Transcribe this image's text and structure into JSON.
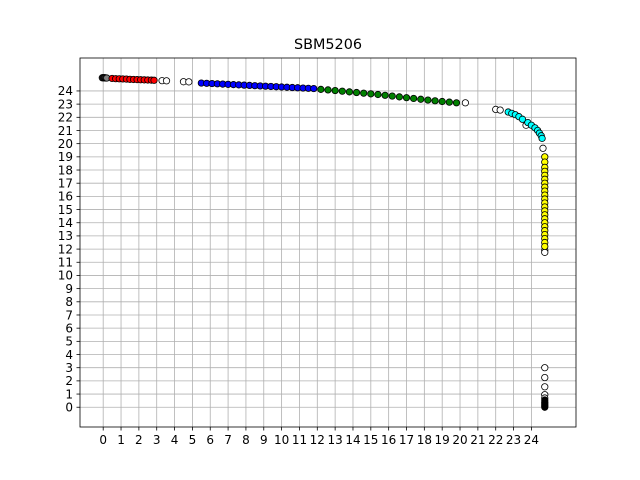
{
  "chart_data": {
    "type": "scatter",
    "title": "SBM5206",
    "xlabel": "",
    "ylabel": "",
    "xlim": [
      -1.3,
      26.5
    ],
    "ylim": [
      -1.5,
      26.5
    ],
    "xticks": [
      0,
      1,
      2,
      3,
      4,
      5,
      6,
      7,
      8,
      9,
      10,
      11,
      12,
      13,
      14,
      15,
      16,
      17,
      18,
      19,
      20,
      21,
      22,
      23,
      24
    ],
    "yticks": [
      0,
      1,
      2,
      3,
      4,
      5,
      6,
      7,
      8,
      9,
      10,
      11,
      12,
      13,
      14,
      15,
      16,
      17,
      18,
      19,
      20,
      21,
      22,
      23,
      24
    ],
    "grid": true,
    "marker": "circle",
    "series": [
      {
        "color": "#808080",
        "points": [
          [
            -0.05,
            25.0
          ],
          [
            0.0,
            25.0
          ],
          [
            0.05,
            25.0
          ],
          [
            0.1,
            25.0
          ],
          [
            0.15,
            24.98
          ],
          [
            0.2,
            24.98
          ]
        ]
      },
      {
        "color": "#ff0000",
        "points": [
          [
            0.5,
            24.95
          ],
          [
            0.7,
            24.93
          ],
          [
            0.9,
            24.92
          ],
          [
            1.1,
            24.91
          ],
          [
            1.3,
            24.9
          ],
          [
            1.5,
            24.88
          ],
          [
            1.7,
            24.87
          ],
          [
            1.9,
            24.86
          ],
          [
            2.1,
            24.85
          ],
          [
            2.3,
            24.84
          ],
          [
            2.5,
            24.83
          ],
          [
            2.7,
            24.82
          ],
          [
            2.85,
            24.81
          ]
        ]
      },
      {
        "color": "#ffffff",
        "points": [
          [
            3.3,
            24.78
          ],
          [
            3.55,
            24.77
          ],
          [
            4.5,
            24.7
          ],
          [
            4.8,
            24.69
          ],
          [
            20.3,
            23.1
          ],
          [
            22.0,
            22.6
          ],
          [
            22.25,
            22.55
          ],
          [
            23.7,
            21.4
          ],
          [
            24.65,
            19.65
          ],
          [
            24.75,
            11.9
          ],
          [
            24.75,
            11.75
          ],
          [
            24.75,
            3.0
          ],
          [
            24.75,
            2.25
          ],
          [
            24.75,
            1.55
          ],
          [
            24.75,
            0.95
          ],
          [
            24.75,
            0.7
          ]
        ]
      },
      {
        "color": "#0000ff",
        "points": [
          [
            5.5,
            24.6
          ],
          [
            5.8,
            24.58
          ],
          [
            6.1,
            24.56
          ],
          [
            6.4,
            24.54
          ],
          [
            6.7,
            24.52
          ],
          [
            7.0,
            24.5
          ],
          [
            7.3,
            24.48
          ],
          [
            7.6,
            24.46
          ],
          [
            7.9,
            24.44
          ],
          [
            8.2,
            24.42
          ],
          [
            8.5,
            24.4
          ],
          [
            8.8,
            24.38
          ],
          [
            9.1,
            24.36
          ],
          [
            9.4,
            24.34
          ],
          [
            9.7,
            24.32
          ],
          [
            10.0,
            24.3
          ],
          [
            10.3,
            24.28
          ],
          [
            10.6,
            24.26
          ],
          [
            10.9,
            24.24
          ],
          [
            11.2,
            24.22
          ],
          [
            11.5,
            24.2
          ],
          [
            11.8,
            24.18
          ]
        ]
      },
      {
        "color": "#008000",
        "points": [
          [
            12.2,
            24.12
          ],
          [
            12.6,
            24.08
          ],
          [
            13.0,
            24.03
          ],
          [
            13.4,
            23.98
          ],
          [
            13.8,
            23.93
          ],
          [
            14.2,
            23.88
          ],
          [
            14.6,
            23.83
          ],
          [
            15.0,
            23.78
          ],
          [
            15.4,
            23.73
          ],
          [
            15.8,
            23.67
          ],
          [
            16.2,
            23.61
          ],
          [
            16.6,
            23.55
          ],
          [
            17.0,
            23.49
          ],
          [
            17.4,
            23.43
          ],
          [
            17.8,
            23.37
          ],
          [
            18.2,
            23.31
          ],
          [
            18.6,
            23.25
          ],
          [
            19.0,
            23.2
          ],
          [
            19.4,
            23.15
          ],
          [
            19.8,
            23.1
          ]
        ]
      },
      {
        "color": "#00ffff",
        "points": [
          [
            22.7,
            22.4
          ],
          [
            22.9,
            22.3
          ],
          [
            23.1,
            22.2
          ],
          [
            23.3,
            22.05
          ],
          [
            23.5,
            21.85
          ],
          [
            23.8,
            21.6
          ],
          [
            24.0,
            21.4
          ],
          [
            24.2,
            21.2
          ],
          [
            24.35,
            21.0
          ],
          [
            24.45,
            20.8
          ],
          [
            24.55,
            20.6
          ],
          [
            24.6,
            20.4
          ]
        ]
      },
      {
        "color": "#ffff00",
        "points": [
          [
            24.75,
            19.0
          ],
          [
            24.75,
            18.6
          ],
          [
            24.75,
            18.2
          ],
          [
            24.75,
            17.9
          ],
          [
            24.75,
            17.6
          ],
          [
            24.75,
            17.3
          ],
          [
            24.75,
            17.0
          ],
          [
            24.75,
            16.7
          ],
          [
            24.75,
            16.4
          ],
          [
            24.75,
            16.1
          ],
          [
            24.75,
            15.8
          ],
          [
            24.75,
            15.5
          ],
          [
            24.75,
            15.2
          ],
          [
            24.75,
            14.9
          ],
          [
            24.75,
            14.6
          ],
          [
            24.75,
            14.3
          ],
          [
            24.75,
            14.0
          ],
          [
            24.75,
            13.7
          ],
          [
            24.75,
            13.4
          ],
          [
            24.75,
            13.1
          ],
          [
            24.75,
            12.8
          ],
          [
            24.75,
            12.5
          ],
          [
            24.75,
            12.2
          ]
        ]
      },
      {
        "color": "#000000",
        "points": [
          [
            24.75,
            0.55
          ],
          [
            24.75,
            0.4
          ],
          [
            24.75,
            0.3
          ],
          [
            24.75,
            0.2
          ],
          [
            24.75,
            0.1
          ],
          [
            24.75,
            0.0
          ]
        ]
      }
    ]
  }
}
